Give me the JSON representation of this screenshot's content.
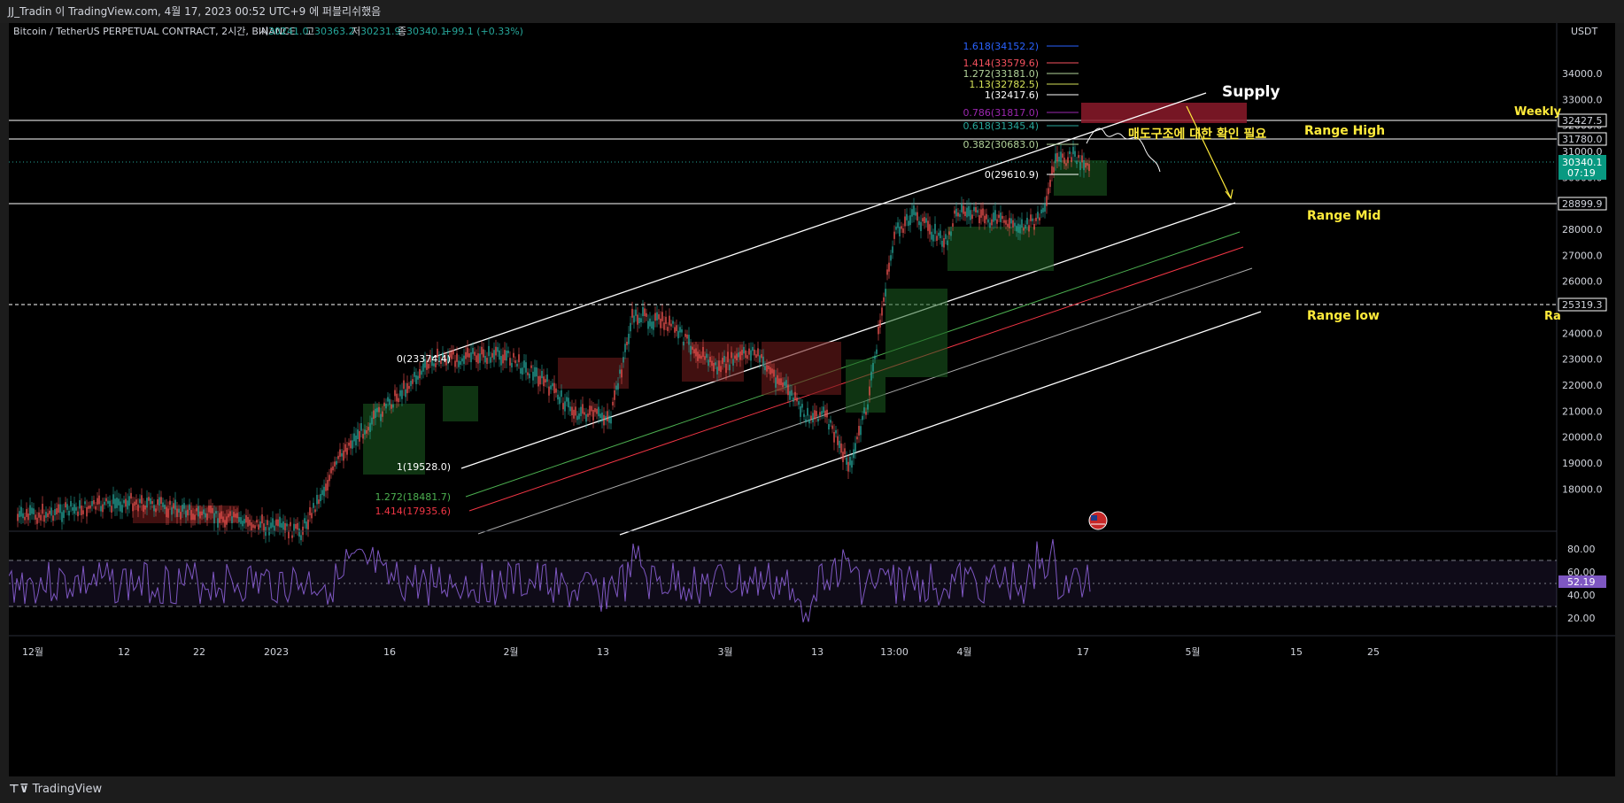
{
  "window": {
    "title": "JJ_Tradin 이 TradingView.com, 4월 17, 2023 00:52 UTC+9 에 퍼블리쉬했음"
  },
  "symbol": {
    "name": "Bitcoin / TetherUS PERPETUAL CONTRACT, 2시간, BINANCE",
    "o_label": "시",
    "o": "30241.0",
    "h_label": "고",
    "h": "30363.2",
    "l_label": "저",
    "l": "30231.9",
    "c_label": "종",
    "c": "30340.1",
    "change": "+99.1 (+0.33%)"
  },
  "price_axis": {
    "currency": "USDT",
    "ticks": [
      "34000.0",
      "33000.0",
      "32000.0",
      "31000.0",
      "30000.0",
      "29000.0",
      "28000.0",
      "27000.0",
      "26000.0",
      "25000.0",
      "24000.0",
      "23000.0",
      "22000.0",
      "21000.0",
      "20000.0",
      "19000.0",
      "18000.0"
    ],
    "labels": [
      {
        "text": "32427.5",
        "style": "outline"
      },
      {
        "text": "31780.0",
        "style": "outline"
      },
      {
        "text": "28899.9",
        "style": "outline"
      },
      {
        "text": "25319.3",
        "style": "outline"
      },
      {
        "text": "30340.1",
        "style": "current"
      },
      {
        "text": "07:19",
        "style": "current"
      }
    ]
  },
  "rsi_axis": {
    "ticks": [
      "80.00",
      "60.00",
      "40.00",
      "20.00"
    ],
    "value": "52.19"
  },
  "time_axis": {
    "labels": [
      "12월",
      "12",
      "22",
      "2023",
      "16",
      "2월",
      "13",
      "3월",
      "13",
      "13:00",
      "4월",
      "17",
      "5월",
      "15",
      "25"
    ]
  },
  "annotations": {
    "supply": "Supply",
    "weekly": "Weekly",
    "range_high": "Range High",
    "range_mid": "Range Mid",
    "range_low": "Range low",
    "range_low_cut": "Ra",
    "korean_note": "매도구조에 대한 확인 필요"
  },
  "fib_upper": [
    {
      "text": "1.618(34152.2)",
      "color": "#2962ff"
    },
    {
      "text": "1.414(33579.6)",
      "color": "#f7525f"
    },
    {
      "text": "1.272(33181.0)",
      "color": "#b2d39a"
    },
    {
      "text": "1.13(32782.5)",
      "color": "#d4e157"
    },
    {
      "text": "1(32417.6)",
      "color": "#ffffff"
    },
    {
      "text": "0.786(31817.0)",
      "color": "#9c27b0"
    },
    {
      "text": "0.618(31345.4)",
      "color": "#26a69a"
    },
    {
      "text": "0.382(30683.0)",
      "color": "#b2d39a"
    },
    {
      "text": "0(29610.9)",
      "color": "#ffffff"
    }
  ],
  "fib_lower": [
    {
      "text": "0(23374.4)",
      "color": "#ffffff"
    },
    {
      "text": "1(19528.0)",
      "color": "#ffffff"
    },
    {
      "text": "1.272(18481.7)",
      "color": "#4caf50"
    },
    {
      "text": "1.414(17935.6)",
      "color": "#f23645"
    }
  ],
  "footer": {
    "brand": "TradingView"
  },
  "colors": {
    "up": "#26a69a",
    "down": "#ef5350",
    "rsi": "#7e57c2",
    "supply_box": "#8b1a2a",
    "text_yellow": "#ffeb3b"
  }
}
